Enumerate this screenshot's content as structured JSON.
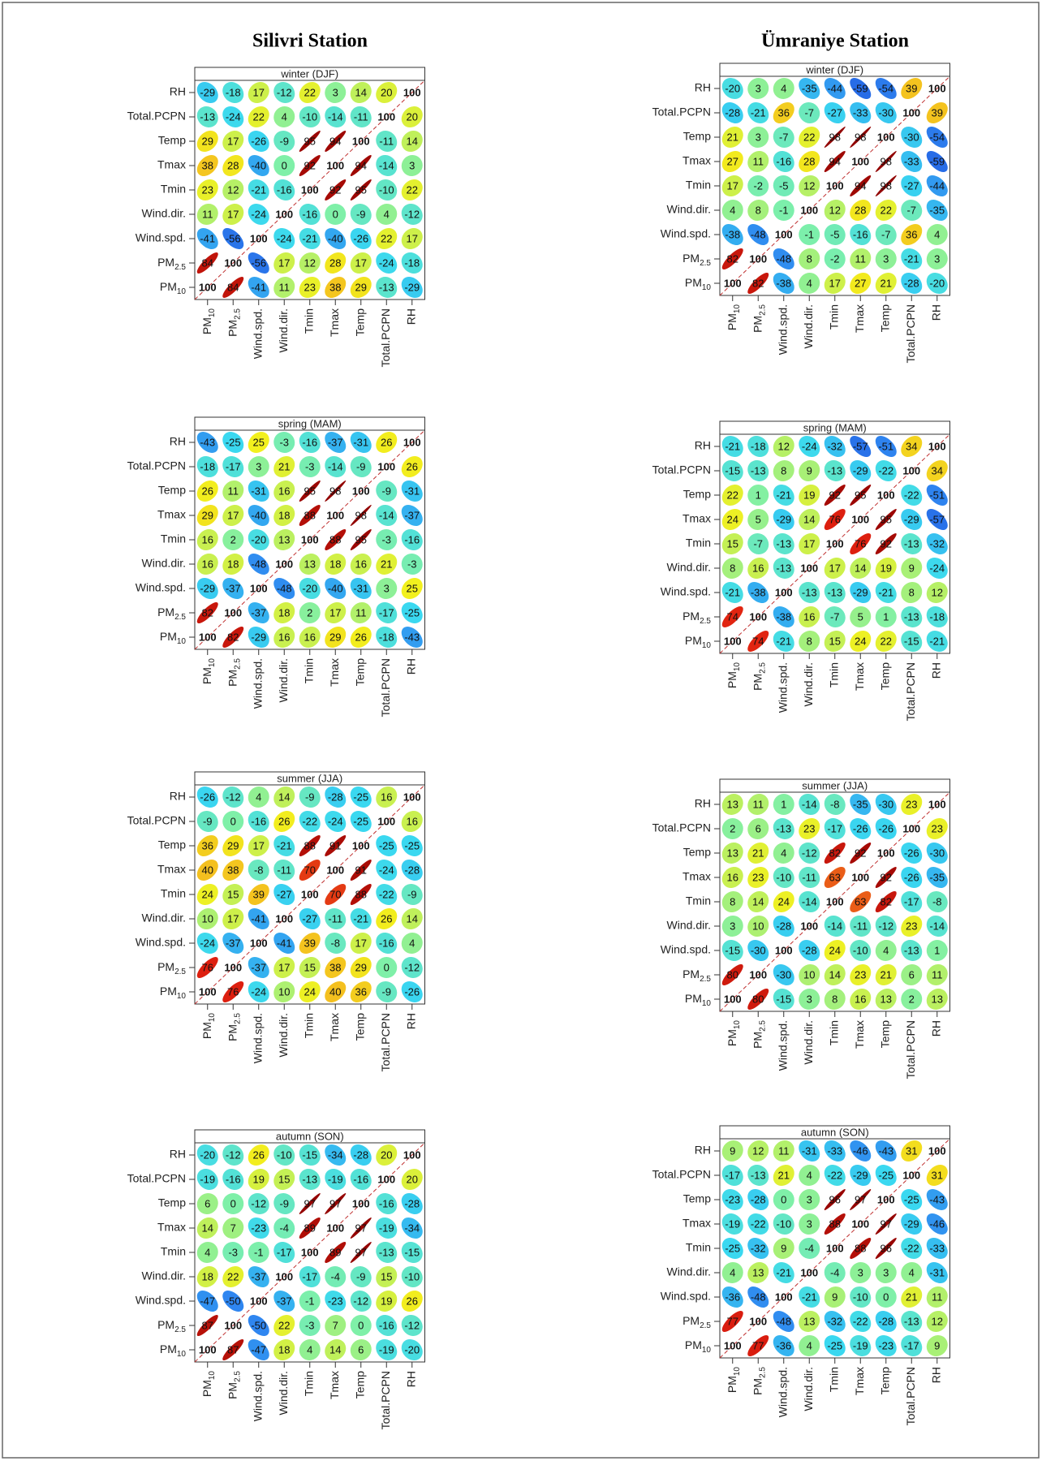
{
  "headers": [
    "Silivri Station",
    "Ümraniye Station"
  ],
  "variables": [
    {
      "base": "PM",
      "sub": "10"
    },
    {
      "base": "PM",
      "sub": "2.5"
    },
    "Wind.spd.",
    "Wind.dir.",
    "Tmin",
    "Tmax",
    "Temp",
    "Total.PCPN",
    "RH"
  ],
  "zlim": [
    -100,
    100
  ],
  "colors": [
    "#00008b",
    "#1a3fd6",
    "#2f86f0",
    "#3ad8f0",
    "#7ff0a8",
    "#f2f01e",
    "#f5a020",
    "#e02010",
    "#8b0000"
  ],
  "chart_data": [
    {
      "type": "correlation",
      "title": "winter (DJF)",
      "values": [
        [
          100,
          84,
          -41,
          11,
          23,
          38,
          29,
          -13,
          -29
        ],
        [
          84,
          100,
          -56,
          17,
          12,
          28,
          17,
          -24,
          -18
        ],
        [
          -41,
          -56,
          100,
          -24,
          -21,
          -40,
          -26,
          22,
          17
        ],
        [
          11,
          17,
          -24,
          100,
          -16,
          0,
          -9,
          4,
          -12
        ],
        [
          23,
          12,
          -21,
          -16,
          100,
          92,
          95,
          -10,
          22
        ],
        [
          38,
          28,
          -40,
          0,
          92,
          100,
          94,
          -14,
          3
        ],
        [
          29,
          17,
          -26,
          -9,
          95,
          94,
          100,
          -11,
          14
        ],
        [
          -13,
          -24,
          22,
          4,
          -10,
          -14,
          -11,
          100,
          20
        ],
        [
          -29,
          -18,
          17,
          -12,
          22,
          3,
          14,
          20,
          100
        ]
      ]
    },
    {
      "type": "correlation",
      "title": "spring (MAM)",
      "values": [
        [
          100,
          82,
          -29,
          16,
          16,
          29,
          26,
          -18,
          -43
        ],
        [
          82,
          100,
          -37,
          18,
          2,
          17,
          11,
          -17,
          -25
        ],
        [
          -29,
          -37,
          100,
          -48,
          -20,
          -40,
          -31,
          3,
          25
        ],
        [
          16,
          18,
          -48,
          100,
          13,
          18,
          16,
          21,
          -3
        ],
        [
          16,
          2,
          -20,
          13,
          100,
          88,
          95,
          -3,
          -16
        ],
        [
          29,
          17,
          -40,
          18,
          88,
          100,
          98,
          -14,
          -37
        ],
        [
          26,
          11,
          -31,
          16,
          95,
          98,
          100,
          -9,
          -31
        ],
        [
          -18,
          -17,
          3,
          21,
          -3,
          -14,
          -9,
          100,
          26
        ],
        [
          -43,
          -25,
          25,
          -3,
          -16,
          -37,
          -31,
          26,
          100
        ]
      ]
    },
    {
      "type": "correlation",
      "title": "summer (JJA)",
      "values": [
        [
          100,
          76,
          -24,
          10,
          24,
          40,
          36,
          -9,
          -26
        ],
        [
          76,
          100,
          -37,
          17,
          15,
          38,
          29,
          0,
          -12
        ],
        [
          -24,
          -37,
          100,
          -41,
          39,
          -8,
          17,
          -16,
          4
        ],
        [
          10,
          17,
          -41,
          100,
          -27,
          -11,
          -21,
          26,
          14
        ],
        [
          24,
          15,
          39,
          -27,
          100,
          70,
          88,
          -22,
          -9
        ],
        [
          40,
          38,
          -8,
          -11,
          70,
          100,
          91,
          -24,
          -28
        ],
        [
          36,
          29,
          17,
          -21,
          88,
          91,
          100,
          -25,
          -25
        ],
        [
          -9,
          0,
          -16,
          26,
          -22,
          -24,
          -25,
          100,
          16
        ],
        [
          -26,
          -12,
          4,
          14,
          -9,
          -28,
          -25,
          16,
          100
        ]
      ]
    },
    {
      "type": "correlation",
      "title": "autumn (SON)",
      "values": [
        [
          100,
          87,
          -47,
          18,
          4,
          14,
          6,
          -19,
          -20
        ],
        [
          87,
          100,
          -50,
          22,
          -3,
          7,
          0,
          -16,
          -12
        ],
        [
          -47,
          -50,
          100,
          -37,
          -1,
          -23,
          -12,
          19,
          26
        ],
        [
          18,
          22,
          -37,
          100,
          -17,
          -4,
          -9,
          15,
          -10
        ],
        [
          4,
          -3,
          -1,
          -17,
          100,
          89,
          97,
          -13,
          -15
        ],
        [
          14,
          7,
          -23,
          -4,
          89,
          100,
          97,
          -19,
          -34
        ],
        [
          6,
          0,
          -12,
          -9,
          97,
          97,
          100,
          -16,
          -28
        ],
        [
          -19,
          -16,
          19,
          15,
          -13,
          -19,
          -16,
          100,
          20
        ],
        [
          -20,
          -12,
          26,
          -10,
          -15,
          -34,
          -28,
          20,
          100
        ]
      ]
    },
    {
      "type": "correlation",
      "title": "winter (DJF)",
      "values": [
        [
          100,
          82,
          -38,
          4,
          17,
          27,
          21,
          -28,
          -20
        ],
        [
          82,
          100,
          -48,
          8,
          -2,
          11,
          3,
          -21,
          3
        ],
        [
          -38,
          -48,
          100,
          -1,
          -5,
          -16,
          -7,
          36,
          4
        ],
        [
          4,
          8,
          -1,
          100,
          12,
          28,
          22,
          -7,
          -35
        ],
        [
          17,
          -2,
          -5,
          12,
          100,
          94,
          98,
          -27,
          -44
        ],
        [
          27,
          11,
          -16,
          28,
          94,
          100,
          98,
          -33,
          -59
        ],
        [
          21,
          3,
          -7,
          22,
          98,
          98,
          100,
          -30,
          -54
        ],
        [
          -28,
          -21,
          36,
          -7,
          -27,
          -33,
          -30,
          100,
          39
        ],
        [
          -20,
          3,
          4,
          -35,
          -44,
          -59,
          -54,
          39,
          100
        ]
      ]
    },
    {
      "type": "correlation",
      "title": "spring (MAM)",
      "values": [
        [
          100,
          74,
          -21,
          8,
          15,
          24,
          22,
          -15,
          -21
        ],
        [
          74,
          100,
          -38,
          16,
          -7,
          5,
          1,
          -13,
          -18
        ],
        [
          -21,
          -38,
          100,
          -13,
          -13,
          -29,
          -21,
          8,
          12
        ],
        [
          8,
          16,
          -13,
          100,
          17,
          14,
          19,
          9,
          -24
        ],
        [
          15,
          -7,
          -13,
          17,
          100,
          76,
          92,
          -13,
          -32
        ],
        [
          24,
          5,
          -29,
          14,
          76,
          100,
          95,
          -29,
          -57
        ],
        [
          22,
          1,
          -21,
          19,
          92,
          95,
          100,
          -22,
          -51
        ],
        [
          -15,
          -13,
          8,
          9,
          -13,
          -29,
          -22,
          100,
          34
        ],
        [
          -21,
          -18,
          12,
          -24,
          -32,
          -57,
          -51,
          34,
          100
        ]
      ]
    },
    {
      "type": "correlation",
      "title": "summer (JJA)",
      "values": [
        [
          100,
          80,
          -15,
          3,
          8,
          16,
          13,
          2,
          13
        ],
        [
          80,
          100,
          -30,
          10,
          14,
          23,
          21,
          6,
          11
        ],
        [
          -15,
          -30,
          100,
          -28,
          24,
          -10,
          4,
          -13,
          1
        ],
        [
          3,
          10,
          -28,
          100,
          -14,
          -11,
          -12,
          23,
          -14
        ],
        [
          8,
          14,
          24,
          -14,
          100,
          63,
          82,
          -17,
          -8
        ],
        [
          16,
          23,
          -10,
          -11,
          63,
          100,
          92,
          -26,
          -35
        ],
        [
          13,
          21,
          4,
          -12,
          82,
          92,
          100,
          -26,
          -30
        ],
        [
          2,
          6,
          -13,
          23,
          -17,
          -26,
          -26,
          100,
          23
        ],
        [
          13,
          11,
          1,
          -14,
          -8,
          -35,
          -30,
          23,
          100
        ]
      ]
    },
    {
      "type": "correlation",
      "title": "autumn (SON)",
      "values": [
        [
          100,
          77,
          -36,
          4,
          -25,
          -19,
          -23,
          -17,
          9
        ],
        [
          77,
          100,
          -48,
          13,
          -32,
          -22,
          -28,
          -13,
          12
        ],
        [
          -36,
          -48,
          100,
          -21,
          9,
          -10,
          0,
          21,
          11
        ],
        [
          4,
          13,
          -21,
          100,
          -4,
          3,
          3,
          4,
          -31
        ],
        [
          -25,
          -32,
          9,
          -4,
          100,
          88,
          96,
          -22,
          -33
        ],
        [
          -19,
          -22,
          -10,
          3,
          88,
          100,
          97,
          -29,
          -46
        ],
        [
          -23,
          -28,
          0,
          3,
          96,
          97,
          100,
          -25,
          -43
        ],
        [
          -17,
          -13,
          21,
          4,
          -22,
          -29,
          -25,
          100,
          31
        ],
        [
          9,
          12,
          11,
          -31,
          -33,
          -46,
          -43,
          31,
          100
        ]
      ]
    }
  ]
}
